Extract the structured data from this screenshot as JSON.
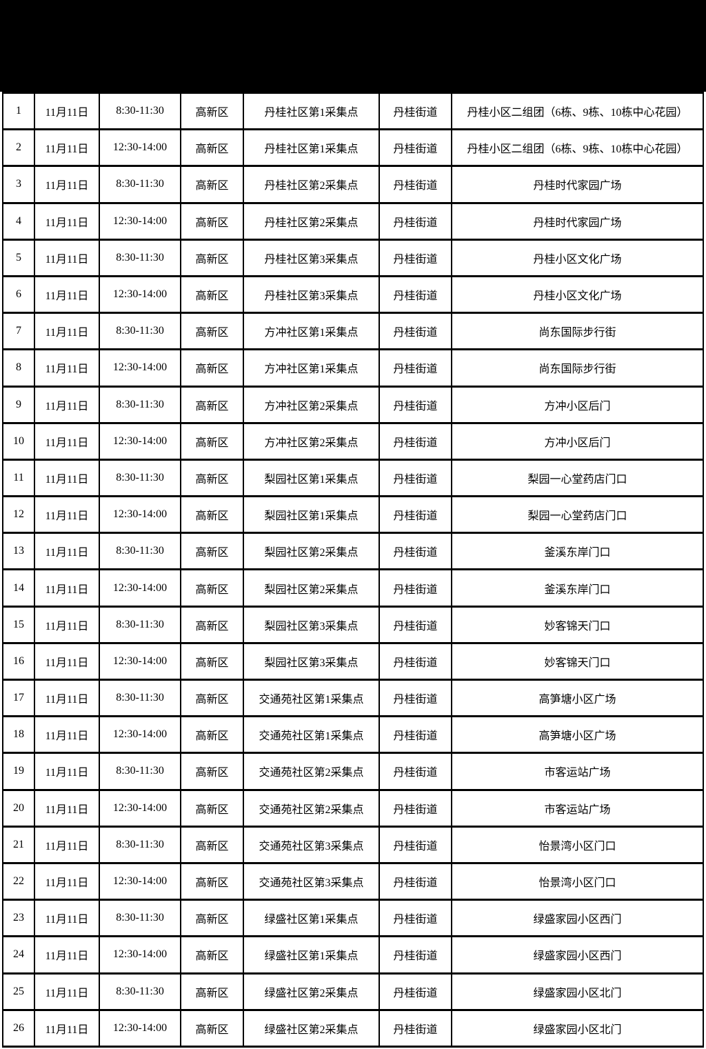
{
  "page": {
    "background_color": "#ffffff",
    "top_band_color": "#000000",
    "text_color": "#000000"
  },
  "table": {
    "fields": [
      "index",
      "date",
      "time",
      "district",
      "site",
      "street",
      "location"
    ],
    "rows": [
      {
        "index": "1",
        "date": "11月11日",
        "time": "8:30-11:30",
        "district": "高新区",
        "site": "丹桂社区第1采集点",
        "street": "丹桂街道",
        "location": "丹桂小区二组团（6栋、9栋、10栋中心花园）"
      },
      {
        "index": "2",
        "date": "11月11日",
        "time": "12:30-14:00",
        "district": "高新区",
        "site": "丹桂社区第1采集点",
        "street": "丹桂街道",
        "location": "丹桂小区二组团（6栋、9栋、10栋中心花园）"
      },
      {
        "index": "3",
        "date": "11月11日",
        "time": "8:30-11:30",
        "district": "高新区",
        "site": "丹桂社区第2采集点",
        "street": "丹桂街道",
        "location": "丹桂时代家园广场"
      },
      {
        "index": "4",
        "date": "11月11日",
        "time": "12:30-14:00",
        "district": "高新区",
        "site": "丹桂社区第2采集点",
        "street": "丹桂街道",
        "location": "丹桂时代家园广场"
      },
      {
        "index": "5",
        "date": "11月11日",
        "time": "8:30-11:30",
        "district": "高新区",
        "site": "丹桂社区第3采集点",
        "street": "丹桂街道",
        "location": "丹桂小区文化广场"
      },
      {
        "index": "6",
        "date": "11月11日",
        "time": "12:30-14:00",
        "district": "高新区",
        "site": "丹桂社区第3采集点",
        "street": "丹桂街道",
        "location": "丹桂小区文化广场"
      },
      {
        "index": "7",
        "date": "11月11日",
        "time": "8:30-11:30",
        "district": "高新区",
        "site": "方冲社区第1采集点",
        "street": "丹桂街道",
        "location": "尚东国际步行街"
      },
      {
        "index": "8",
        "date": "11月11日",
        "time": "12:30-14:00",
        "district": "高新区",
        "site": "方冲社区第1采集点",
        "street": "丹桂街道",
        "location": "尚东国际步行街"
      },
      {
        "index": "9",
        "date": "11月11日",
        "time": "8:30-11:30",
        "district": "高新区",
        "site": "方冲社区第2采集点",
        "street": "丹桂街道",
        "location": "方冲小区后门"
      },
      {
        "index": "10",
        "date": "11月11日",
        "time": "12:30-14:00",
        "district": "高新区",
        "site": "方冲社区第2采集点",
        "street": "丹桂街道",
        "location": "方冲小区后门"
      },
      {
        "index": "11",
        "date": "11月11日",
        "time": "8:30-11:30",
        "district": "高新区",
        "site": "梨园社区第1采集点",
        "street": "丹桂街道",
        "location": "梨园一心堂药店门口"
      },
      {
        "index": "12",
        "date": "11月11日",
        "time": "12:30-14:00",
        "district": "高新区",
        "site": "梨园社区第1采集点",
        "street": "丹桂街道",
        "location": "梨园一心堂药店门口"
      },
      {
        "index": "13",
        "date": "11月11日",
        "time": "8:30-11:30",
        "district": "高新区",
        "site": "梨园社区第2采集点",
        "street": "丹桂街道",
        "location": "釜溪东岸门口"
      },
      {
        "index": "14",
        "date": "11月11日",
        "time": "12:30-14:00",
        "district": "高新区",
        "site": "梨园社区第2采集点",
        "street": "丹桂街道",
        "location": "釜溪东岸门口"
      },
      {
        "index": "15",
        "date": "11月11日",
        "time": "8:30-11:30",
        "district": "高新区",
        "site": "梨园社区第3采集点",
        "street": "丹桂街道",
        "location": "妙客锦天门口"
      },
      {
        "index": "16",
        "date": "11月11日",
        "time": "12:30-14:00",
        "district": "高新区",
        "site": "梨园社区第3采集点",
        "street": "丹桂街道",
        "location": "妙客锦天门口"
      },
      {
        "index": "17",
        "date": "11月11日",
        "time": "8:30-11:30",
        "district": "高新区",
        "site": "交通苑社区第1采集点",
        "street": "丹桂街道",
        "location": "高笋塘小区广场"
      },
      {
        "index": "18",
        "date": "11月11日",
        "time": "12:30-14:00",
        "district": "高新区",
        "site": "交通苑社区第1采集点",
        "street": "丹桂街道",
        "location": "高笋塘小区广场"
      },
      {
        "index": "19",
        "date": "11月11日",
        "time": "8:30-11:30",
        "district": "高新区",
        "site": "交通苑社区第2采集点",
        "street": "丹桂街道",
        "location": "市客运站广场"
      },
      {
        "index": "20",
        "date": "11月11日",
        "time": "12:30-14:00",
        "district": "高新区",
        "site": "交通苑社区第2采集点",
        "street": "丹桂街道",
        "location": "市客运站广场"
      },
      {
        "index": "21",
        "date": "11月11日",
        "time": "8:30-11:30",
        "district": "高新区",
        "site": "交通苑社区第3采集点",
        "street": "丹桂街道",
        "location": "怡景湾小区门口"
      },
      {
        "index": "22",
        "date": "11月11日",
        "time": "12:30-14:00",
        "district": "高新区",
        "site": "交通苑社区第3采集点",
        "street": "丹桂街道",
        "location": "怡景湾小区门口"
      },
      {
        "index": "23",
        "date": "11月11日",
        "time": "8:30-11:30",
        "district": "高新区",
        "site": "绿盛社区第1采集点",
        "street": "丹桂街道",
        "location": "绿盛家园小区西门"
      },
      {
        "index": "24",
        "date": "11月11日",
        "time": "12:30-14:00",
        "district": "高新区",
        "site": "绿盛社区第1采集点",
        "street": "丹桂街道",
        "location": "绿盛家园小区西门"
      },
      {
        "index": "25",
        "date": "11月11日",
        "time": "8:30-11:30",
        "district": "高新区",
        "site": "绿盛社区第2采集点",
        "street": "丹桂街道",
        "location": "绿盛家园小区北门"
      },
      {
        "index": "26",
        "date": "11月11日",
        "time": "12:30-14:00",
        "district": "高新区",
        "site": "绿盛社区第2采集点",
        "street": "丹桂街道",
        "location": "绿盛家园小区北门"
      }
    ]
  }
}
